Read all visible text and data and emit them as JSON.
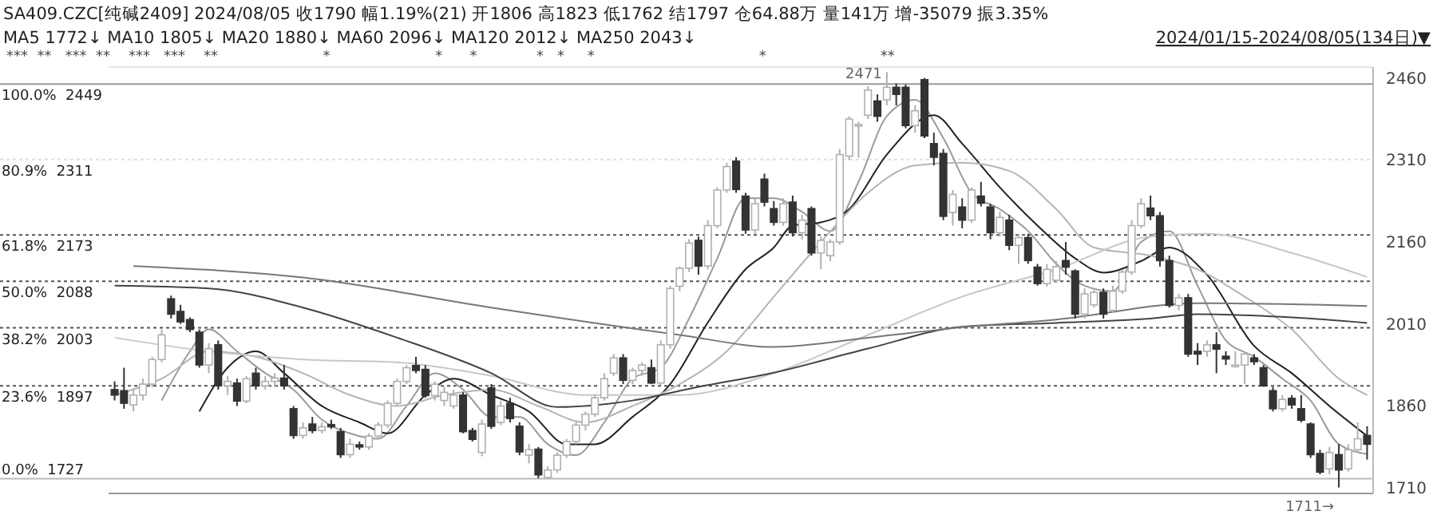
{
  "chart_data": {
    "type": "candlestick",
    "title": "SA409.CZC[纯碱2409]  2024/08/05  收1790  幅1.19%(21)  开1806  高1823  低1762  结1797  仓64.88万  量141万  增-35079  振3.35%",
    "subtitle": "MA5 1772↓  MA10 1805↓  MA20 1880↓  MA60 2096↓  MA120 2012↓  MA250 2043↓",
    "annotations": [
      "2024/01/15-2024/08/05(134日)▼",
      "***  **   ***  **    ***   ***    **                       *                       *      *             *   *     *                                    *                         **",
      "2471",
      "1711→"
    ],
    "categories": [
      null,
      null,
      null,
      null,
      null,
      null,
      null,
      null,
      null,
      null,
      null,
      null,
      null,
      null,
      null,
      null,
      null,
      null,
      null,
      null,
      null,
      null,
      null,
      null,
      null,
      null,
      null,
      null,
      null,
      null,
      null,
      null,
      null,
      null,
      null,
      null,
      null,
      null,
      null,
      null,
      null,
      null,
      null,
      null,
      null,
      null,
      null,
      null,
      null,
      null,
      null,
      null,
      null,
      null,
      null,
      null,
      null,
      null,
      null,
      null,
      null,
      null,
      null,
      null,
      null,
      null,
      null,
      null,
      null,
      null,
      null,
      null,
      null,
      null,
      null,
      null,
      null,
      null,
      null,
      null,
      null,
      null,
      null,
      null,
      null,
      null,
      null,
      null,
      null,
      null,
      null,
      null,
      null,
      null,
      null,
      null,
      null,
      null,
      null,
      null,
      null,
      null,
      null,
      null,
      null,
      null,
      null,
      null,
      null,
      null,
      null,
      null,
      null,
      null,
      null,
      null,
      null,
      null,
      null,
      null,
      null,
      null,
      null,
      null,
      null,
      null,
      null,
      null,
      null,
      null,
      null,
      null,
      null,
      null
    ],
    "ohlc": [
      [
        1890,
        1905,
        1870,
        1880
      ],
      [
        1888,
        1930,
        1855,
        1865
      ],
      [
        1862,
        1890,
        1850,
        1880
      ],
      [
        1880,
        1910,
        1870,
        1900
      ],
      [
        1900,
        1950,
        1895,
        1945
      ],
      [
        1945,
        2000,
        1940,
        1990
      ],
      [
        2056,
        2062,
        2020,
        2028
      ],
      [
        2033,
        2045,
        2010,
        2014
      ],
      [
        2018,
        2022,
        1995,
        2000
      ],
      [
        1995,
        2000,
        1930,
        1935
      ],
      [
        1935,
        1975,
        1920,
        1965
      ],
      [
        1972,
        1980,
        1890,
        1897
      ],
      [
        1897,
        1915,
        1880,
        1905
      ],
      [
        1902,
        1910,
        1860,
        1869
      ],
      [
        1869,
        1915,
        1865,
        1910
      ],
      [
        1920,
        1930,
        1890,
        1897
      ],
      [
        1897,
        1915,
        1890,
        1905
      ],
      [
        1905,
        1920,
        1895,
        1911
      ],
      [
        1911,
        1935,
        1890,
        1897
      ],
      [
        1855,
        1860,
        1800,
        1806
      ],
      [
        1806,
        1830,
        1800,
        1820
      ],
      [
        1827,
        1840,
        1810,
        1815
      ],
      [
        1815,
        1830,
        1810,
        1822
      ],
      [
        1826,
        1835,
        1818,
        1822
      ],
      [
        1813,
        1820,
        1765,
        1771
      ],
      [
        1771,
        1800,
        1765,
        1790
      ],
      [
        1789,
        1795,
        1780,
        1785
      ],
      [
        1785,
        1810,
        1780,
        1805
      ],
      [
        1805,
        1830,
        1800,
        1825
      ],
      [
        1825,
        1870,
        1820,
        1865
      ],
      [
        1865,
        1910,
        1860,
        1905
      ],
      [
        1905,
        1935,
        1900,
        1930
      ],
      [
        1934,
        1950,
        1920,
        1925
      ],
      [
        1927,
        1935,
        1875,
        1879
      ],
      [
        1879,
        1905,
        1870,
        1900
      ],
      [
        1870,
        1895,
        1860,
        1885
      ],
      [
        1860,
        1890,
        1855,
        1880
      ],
      [
        1880,
        1885,
        1810,
        1813
      ],
      [
        1815,
        1820,
        1795,
        1799
      ],
      [
        1775,
        1835,
        1768,
        1827
      ],
      [
        1893,
        1900,
        1818,
        1823
      ],
      [
        1830,
        1870,
        1825,
        1860
      ],
      [
        1865,
        1875,
        1830,
        1837
      ],
      [
        1823,
        1830,
        1770,
        1776
      ],
      [
        1770,
        1790,
        1755,
        1780
      ],
      [
        1781,
        1785,
        1728,
        1734
      ],
      [
        1729,
        1750,
        1727,
        1743
      ],
      [
        1743,
        1775,
        1738,
        1770
      ],
      [
        1770,
        1800,
        1765,
        1795
      ],
      [
        1795,
        1830,
        1790,
        1825
      ],
      [
        1825,
        1850,
        1815,
        1845
      ],
      [
        1845,
        1880,
        1840,
        1875
      ],
      [
        1875,
        1920,
        1870,
        1910
      ],
      [
        1920,
        1955,
        1915,
        1948
      ],
      [
        1948,
        1955,
        1900,
        1907
      ],
      [
        1907,
        1930,
        1900,
        1925
      ],
      [
        1925,
        1940,
        1915,
        1935
      ],
      [
        1930,
        1945,
        1900,
        1902
      ],
      [
        1902,
        1980,
        1898,
        1972
      ],
      [
        1972,
        2080,
        1965,
        2075
      ],
      [
        2079,
        2115,
        2070,
        2112
      ],
      [
        2112,
        2165,
        2105,
        2158
      ],
      [
        2163,
        2170,
        2100,
        2116
      ],
      [
        2116,
        2200,
        2110,
        2190
      ],
      [
        2190,
        2260,
        2185,
        2255
      ],
      [
        2255,
        2305,
        2250,
        2298
      ],
      [
        2308,
        2315,
        2250,
        2256
      ],
      [
        2244,
        2250,
        2175,
        2182
      ],
      [
        2182,
        2240,
        2175,
        2230
      ],
      [
        2275,
        2285,
        2225,
        2233
      ],
      [
        2221,
        2235,
        2190,
        2196
      ],
      [
        2196,
        2240,
        2190,
        2230
      ],
      [
        2233,
        2245,
        2170,
        2177
      ],
      [
        2177,
        2210,
        2165,
        2200
      ],
      [
        2221,
        2225,
        2135,
        2140
      ],
      [
        2140,
        2170,
        2110,
        2163
      ],
      [
        2135,
        2165,
        2125,
        2160
      ],
      [
        2160,
        2330,
        2155,
        2320
      ],
      [
        2317,
        2390,
        2310,
        2385
      ],
      [
        2375,
        2380,
        2315,
        2375
      ],
      [
        2392,
        2445,
        2385,
        2438
      ],
      [
        2418,
        2430,
        2380,
        2390
      ],
      [
        2420,
        2471,
        2410,
        2443
      ],
      [
        2443,
        2450,
        2410,
        2430
      ],
      [
        2443,
        2448,
        2368,
        2373
      ],
      [
        2373,
        2410,
        2360,
        2400
      ],
      [
        2457,
        2460,
        2350,
        2354
      ],
      [
        2340,
        2360,
        2300,
        2315
      ],
      [
        2322,
        2330,
        2200,
        2207
      ],
      [
        2214,
        2255,
        2190,
        2247
      ],
      [
        2224,
        2240,
        2185,
        2200
      ],
      [
        2200,
        2260,
        2195,
        2255
      ],
      [
        2244,
        2270,
        2225,
        2231
      ],
      [
        2224,
        2230,
        2165,
        2177
      ],
      [
        2177,
        2215,
        2170,
        2205
      ],
      [
        2200,
        2210,
        2145,
        2154
      ],
      [
        2154,
        2175,
        2120,
        2168
      ],
      [
        2168,
        2175,
        2120,
        2126
      ],
      [
        2114,
        2120,
        2080,
        2084
      ],
      [
        2084,
        2120,
        2078,
        2110
      ],
      [
        2090,
        2125,
        2085,
        2115
      ],
      [
        2126,
        2160,
        2100,
        2114
      ],
      [
        2107,
        2110,
        2020,
        2028
      ],
      [
        2028,
        2075,
        2020,
        2065
      ],
      [
        2045,
        2075,
        2040,
        2068
      ],
      [
        2068,
        2075,
        2020,
        2028
      ],
      [
        2035,
        2080,
        2030,
        2070
      ],
      [
        2070,
        2110,
        2065,
        2105
      ],
      [
        2105,
        2200,
        2100,
        2190
      ],
      [
        2190,
        2240,
        2185,
        2230
      ],
      [
        2222,
        2245,
        2200,
        2208
      ],
      [
        2208,
        2215,
        2115,
        2126
      ],
      [
        2126,
        2135,
        2040,
        2044
      ],
      [
        2044,
        2065,
        2035,
        2058
      ],
      [
        2058,
        2065,
        1950,
        1955
      ],
      [
        1960,
        1975,
        1935,
        1955
      ],
      [
        1960,
        1980,
        1950,
        1972
      ],
      [
        1972,
        1995,
        1920,
        1964
      ],
      [
        1951,
        1960,
        1935,
        1946
      ],
      [
        1935,
        1960,
        1930,
        1935
      ],
      [
        1935,
        1960,
        1900,
        1955
      ],
      [
        1948,
        1955,
        1935,
        1941
      ],
      [
        1930,
        1935,
        1895,
        1897
      ],
      [
        1888,
        1895,
        1850,
        1855
      ],
      [
        1855,
        1880,
        1850,
        1872
      ],
      [
        1874,
        1880,
        1855,
        1862
      ],
      [
        1855,
        1880,
        1830,
        1834
      ],
      [
        1827,
        1830,
        1765,
        1771
      ],
      [
        1773,
        1780,
        1735,
        1739
      ],
      [
        1745,
        1785,
        1735,
        1775
      ],
      [
        1771,
        1790,
        1711,
        1743
      ],
      [
        1745,
        1790,
        1740,
        1780
      ],
      [
        1780,
        1830,
        1775,
        1800
      ],
      [
        1806,
        1823,
        1762,
        1790
      ]
    ],
    "series": [
      {
        "type": "line",
        "color": "#9a9a9a",
        "values": [
          null,
          null,
          null,
          null,
          null,
          1870,
          null,
          null,
          1960,
          null,
          2000,
          null,
          null,
          1960,
          null,
          null,
          1920,
          null,
          null,
          1890,
          null,
          null,
          1835,
          null,
          null,
          1810,
          null,
          null,
          1800,
          null,
          null,
          1860,
          null,
          null,
          1920,
          null,
          null,
          1890,
          null,
          null,
          1840,
          null,
          null,
          1840,
          null,
          null,
          1790,
          null,
          null,
          1770,
          null,
          null,
          1830,
          null,
          null,
          1910,
          null,
          null,
          1930,
          null,
          null,
          2020,
          null,
          null,
          2130,
          null,
          null,
          2240,
          null,
          null,
          2240,
          null,
          null,
          2215,
          null,
          null,
          2180,
          null,
          null,
          2270,
          null,
          null,
          2390,
          null,
          null,
          2420,
          null,
          null,
          2350,
          null,
          null,
          2250,
          null,
          null,
          2220,
          null,
          null,
          2180,
          null,
          null,
          2120,
          null,
          null,
          2080,
          null,
          null,
          2070,
          null,
          null,
          2160,
          null,
          null,
          2180,
          null,
          null,
          2080,
          null,
          null,
          1980,
          null,
          null,
          1950,
          null,
          null,
          1910,
          null,
          null,
          1870,
          null,
          null,
          1790,
          null,
          null,
          1772
        ]
      },
      {
        "type": "line",
        "color": "#222222",
        "values": [
          null,
          null,
          null,
          null,
          null,
          null,
          null,
          null,
          null,
          1850,
          null,
          null,
          1930,
          null,
          null,
          1960,
          null,
          null,
          1920,
          null,
          null,
          null,
          1860,
          null,
          null,
          null,
          1830,
          null,
          null,
          1810,
          null,
          null,
          null,
          1880,
          null,
          null,
          1910,
          null,
          null,
          null,
          1880,
          null,
          null,
          null,
          1850,
          null,
          null,
          null,
          1790,
          null,
          null,
          1790,
          null,
          null,
          null,
          1840,
          null,
          null,
          null,
          1900,
          null,
          null,
          null,
          2013,
          null,
          null,
          null,
          2110,
          null,
          null,
          2150,
          null,
          2190,
          null,
          null,
          2196,
          null,
          null,
          2220,
          null,
          null,
          null,
          2320,
          null,
          null,
          null,
          null,
          2392,
          null,
          null,
          2340,
          null,
          null,
          null,
          2260,
          null,
          null,
          null,
          2190,
          null,
          null,
          null,
          2130,
          null,
          null,
          2104,
          null,
          null,
          null,
          2125,
          null,
          null,
          2150,
          null,
          null,
          null,
          2100,
          null,
          null,
          null,
          null,
          1970,
          null,
          null,
          null,
          1920,
          null,
          null,
          null,
          1860,
          null,
          null,
          null,
          1805
        ]
      },
      {
        "type": "line",
        "color": "#b5b5b5",
        "values": [
          1880,
          null,
          null,
          null,
          null,
          1910,
          null,
          null,
          null,
          null,
          1960,
          null,
          null,
          null,
          null,
          1950,
          null,
          null,
          null,
          null,
          1920,
          null,
          null,
          null,
          null,
          1880,
          null,
          null,
          null,
          null,
          1860,
          null,
          null,
          null,
          null,
          1880,
          null,
          null,
          null,
          null,
          1890,
          null,
          null,
          null,
          null,
          1860,
          null,
          null,
          null,
          null,
          1830,
          null,
          null,
          null,
          null,
          1860,
          null,
          null,
          null,
          null,
          1900,
          null,
          null,
          null,
          null,
          1960,
          null,
          null,
          null,
          null,
          2060,
          null,
          null,
          null,
          null,
          2160,
          null,
          null,
          null,
          null,
          2250,
          null,
          null,
          null,
          null,
          2300,
          null,
          null,
          null,
          null,
          2305,
          null,
          null,
          null,
          null,
          2290,
          null,
          null,
          null,
          null,
          2220,
          null,
          null,
          null,
          2150,
          null,
          null,
          null,
          null,
          null,
          2135,
          null,
          null,
          null,
          null,
          2110,
          null,
          null,
          null,
          null,
          2060,
          null,
          null,
          null,
          null,
          2000,
          null,
          null,
          null,
          null,
          1910,
          null,
          null,
          1880
        ]
      },
      {
        "type": "line",
        "color": "#c8c8c8",
        "values": [
          1985,
          null,
          null,
          null,
          null,
          null,
          null,
          null,
          null,
          null,
          1960,
          null,
          null,
          null,
          null,
          null,
          null,
          null,
          null,
          null,
          1945,
          null,
          null,
          null,
          null,
          null,
          null,
          null,
          null,
          null,
          1940,
          null,
          null,
          null,
          null,
          null,
          null,
          null,
          null,
          null,
          1915,
          null,
          null,
          null,
          null,
          null,
          null,
          null,
          null,
          null,
          1880,
          null,
          null,
          null,
          null,
          null,
          null,
          null,
          null,
          null,
          1880,
          null,
          null,
          null,
          null,
          null,
          null,
          null,
          null,
          null,
          1920,
          null,
          null,
          null,
          null,
          null,
          null,
          null,
          null,
          null,
          1990,
          null,
          null,
          null,
          null,
          null,
          null,
          null,
          null,
          null,
          2060,
          null,
          null,
          null,
          null,
          null,
          null,
          null,
          null,
          null,
          2110,
          null,
          null,
          null,
          null,
          null,
          null,
          null,
          null,
          null,
          2170,
          null,
          null,
          null,
          null,
          null,
          2175,
          null,
          null,
          null,
          null,
          null,
          null,
          null,
          null,
          2140,
          null,
          null,
          null,
          null,
          null,
          null,
          null,
          2096
        ]
      },
      {
        "type": "line",
        "color": "#444444",
        "values": [
          2080,
          null,
          null,
          null,
          null,
          null,
          null,
          null,
          null,
          null,
          2075,
          null,
          null,
          null,
          null,
          null,
          null,
          null,
          null,
          null,
          2040,
          null,
          null,
          null,
          null,
          null,
          null,
          null,
          null,
          null,
          1985,
          null,
          null,
          null,
          null,
          null,
          null,
          null,
          null,
          null,
          1920,
          null,
          null,
          null,
          null,
          null,
          null,
          1858,
          null,
          null,
          null,
          null,
          null,
          null,
          null,
          1870,
          null,
          null,
          null,
          null,
          null,
          null,
          1895,
          null,
          null,
          null,
          null,
          null,
          null,
          null,
          1921,
          null,
          null,
          null,
          null,
          null,
          null,
          null,
          null,
          null,
          1965,
          null,
          null,
          null,
          null,
          null,
          null,
          null,
          null,
          null,
          2005,
          null,
          null,
          null,
          null,
          null,
          null,
          null,
          null,
          null,
          2012,
          null,
          null,
          null,
          null,
          null,
          null,
          null,
          null,
          null,
          2020,
          null,
          null,
          null,
          null,
          2028,
          null,
          null,
          null,
          null,
          null,
          null,
          null,
          null,
          null,
          2022,
          null,
          null,
          null,
          null,
          null,
          null,
          null,
          2012
        ]
      },
      {
        "type": "line",
        "color": "#777777",
        "values": [
          null,
          null,
          2116,
          null,
          null,
          null,
          null,
          null,
          null,
          null,
          null,
          null,
          null,
          null,
          null,
          null,
          null,
          null,
          null,
          null,
          2095,
          null,
          null,
          null,
          null,
          null,
          null,
          null,
          null,
          null,
          null,
          null,
          null,
          null,
          null,
          null,
          null,
          null,
          null,
          null,
          2040,
          null,
          null,
          null,
          null,
          null,
          null,
          null,
          null,
          null,
          null,
          null,
          null,
          null,
          null,
          null,
          null,
          null,
          null,
          null,
          1990,
          null,
          null,
          null,
          null,
          null,
          null,
          null,
          null,
          null,
          1968,
          null,
          null,
          null,
          null,
          null,
          null,
          null,
          null,
          null,
          1985,
          null,
          null,
          null,
          null,
          null,
          null,
          null,
          null,
          null,
          2004,
          null,
          null,
          null,
          null,
          null,
          null,
          null,
          null,
          null,
          2018,
          null,
          null,
          null,
          null,
          null,
          null,
          null,
          null,
          null,
          null,
          null,
          null,
          null,
          null,
          2048,
          null,
          null,
          null,
          null,
          null,
          null,
          null,
          null,
          null,
          null,
          null,
          null,
          null,
          null,
          null,
          null,
          null,
          2043
        ]
      }
    ],
    "ylim": [
      1700,
      2480
    ],
    "yticks": [
      1710,
      1860,
      2010,
      2160,
      2310,
      2460
    ],
    "ref_lines": [
      {
        "axis": "y",
        "value": 2449,
        "label": "100.0%  2449",
        "color": "#999999",
        "line_style": "solid"
      },
      {
        "axis": "y",
        "value": 2311,
        "label": "80.9%  2311",
        "color": "#e0e0e0",
        "line_style": "dotted"
      },
      {
        "axis": "y",
        "value": 2173,
        "label": "61.8%  2173",
        "color": "#555555",
        "line_style": "dotted"
      },
      {
        "axis": "y",
        "value": 2088,
        "label": "50.0%  2088",
        "color": "#555555",
        "line_style": "dotted"
      },
      {
        "axis": "y",
        "value": 2003,
        "label": "38.2%  2003",
        "color": "#555555",
        "line_style": "dotted"
      },
      {
        "axis": "y",
        "value": 1897,
        "label": "23.6%  1897",
        "color": "#555555",
        "line_style": "dotted"
      },
      {
        "axis": "y",
        "value": 1727,
        "label": "0.0%  1727",
        "color": "#bbbbbb",
        "line_style": "solid"
      }
    ]
  }
}
